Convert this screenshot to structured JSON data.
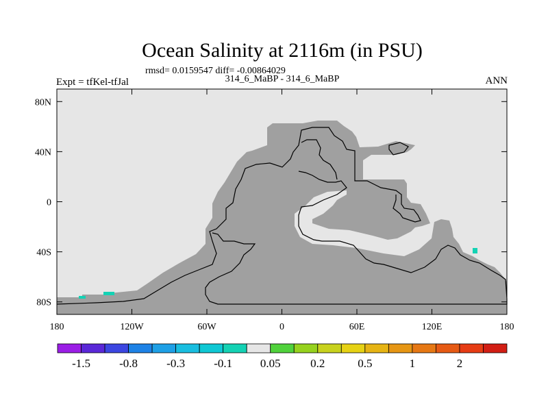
{
  "chart_data": {
    "type": "heatmap",
    "title": "Ocean Salinity at 2116m (in PSU)",
    "stats_line": "rmsd= 0.0159547 diff= -0.00864029",
    "case_line": "314_6_MaBP - 314_6_MaBP",
    "left_label": "Expt = tfKel-tfJal",
    "right_label": "ANN",
    "x_ticks": [
      "180",
      "120W",
      "60W",
      "0",
      "60E",
      "120E",
      "180"
    ],
    "x_tick_values": [
      -180,
      -120,
      -60,
      0,
      60,
      120,
      180
    ],
    "y_ticks": [
      "80N",
      "40N",
      "0",
      "40S",
      "80S"
    ],
    "y_tick_values": [
      80,
      40,
      0,
      -40,
      -80
    ],
    "xlim": [
      -180,
      180
    ],
    "ylim": [
      -90,
      90
    ],
    "colorbar": {
      "colors": [
        "#9b1ee6",
        "#5a28d8",
        "#3c46e1",
        "#1e82e6",
        "#1ea0e6",
        "#19bee0",
        "#0fc8d4",
        "#14d2b4",
        "#e6e6e6",
        "#50d23c",
        "#96d21e",
        "#c8d21e",
        "#e6d214",
        "#e6b414",
        "#e69614",
        "#e67814",
        "#e65a14",
        "#e63c14",
        "#d21e14"
      ],
      "labels": [
        "-1.5",
        "-0.8",
        "-0.3",
        "-0.1",
        "0.05",
        "0.2",
        "0.5",
        "1",
        "2"
      ],
      "label_boundaries": [
        1,
        3,
        5,
        7,
        9,
        11,
        13,
        15,
        17
      ]
    },
    "field_colors": {
      "background": "#e6e6e6",
      "ocean_small_diff": "#a0a0a0",
      "anomaly": "#14d2b4"
    },
    "anomalies": [
      {
        "lon": -162,
        "lat": -76,
        "value": -0.1
      },
      {
        "lon": -138,
        "lat": -73,
        "value": -0.1
      },
      {
        "lon": 155,
        "lat": -38,
        "value": -0.1
      }
    ]
  }
}
